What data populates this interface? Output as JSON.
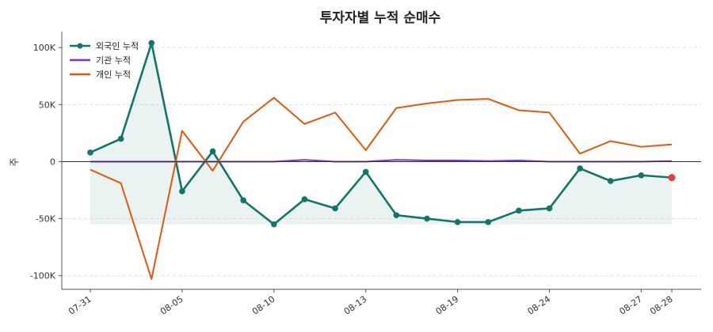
{
  "chart_data": {
    "type": "line",
    "title": "투자자별 누적 순매수",
    "xlabel": "",
    "ylabel": "주",
    "ylim": [
      -112000,
      114000
    ],
    "y_ticks": [
      100000,
      50000,
      0,
      -50000,
      -100000
    ],
    "y_tick_labels": [
      "100K",
      "50K",
      "0",
      "-50K",
      "-100K"
    ],
    "grid": "horizontal dashed",
    "legend_position": "top-left",
    "x": [
      "07-31",
      "08-01",
      "08-04",
      "08-05",
      "08-06",
      "08-07",
      "08-10",
      "08-11",
      "08-12",
      "08-13",
      "08-14",
      "08-15",
      "08-19",
      "08-20",
      "08-21",
      "08-24",
      "08-25",
      "08-26",
      "08-27",
      "08-28"
    ],
    "x_tick_labels": [
      "07-31",
      "08-05",
      "08-10",
      "08-13",
      "08-19",
      "08-24",
      "08-27",
      "08-28"
    ],
    "x_tick_indices": [
      0,
      3,
      6,
      9,
      12,
      15,
      18,
      19
    ],
    "series": [
      {
        "name": "외국인 누적",
        "color": "#11766a",
        "markers": true,
        "fill_between_with_min": true,
        "last_point_color": "#e53e3e",
        "values": [
          8000,
          20000,
          104000,
          -26000,
          9000,
          -34000,
          -55000,
          -33000,
          -41000,
          -9000,
          -47000,
          -50000,
          -53000,
          -53000,
          -43000,
          -41000,
          -6000,
          -17000,
          -12000,
          -14000
        ]
      },
      {
        "name": "기관 누적",
        "color": "#7b2fd6",
        "markers": false,
        "values": [
          0,
          0,
          0,
          0,
          0,
          0,
          0,
          1500,
          0,
          0,
          1500,
          1000,
          1000,
          500,
          1000,
          0,
          0,
          0,
          0,
          500
        ]
      },
      {
        "name": "개인 누적",
        "color": "#e3580b",
        "markers": false,
        "values": [
          -7000,
          -19000,
          -103000,
          27000,
          -8000,
          35000,
          56000,
          33000,
          43000,
          10000,
          47000,
          51000,
          54000,
          55000,
          45000,
          43000,
          7000,
          18000,
          13000,
          15000
        ]
      }
    ]
  }
}
